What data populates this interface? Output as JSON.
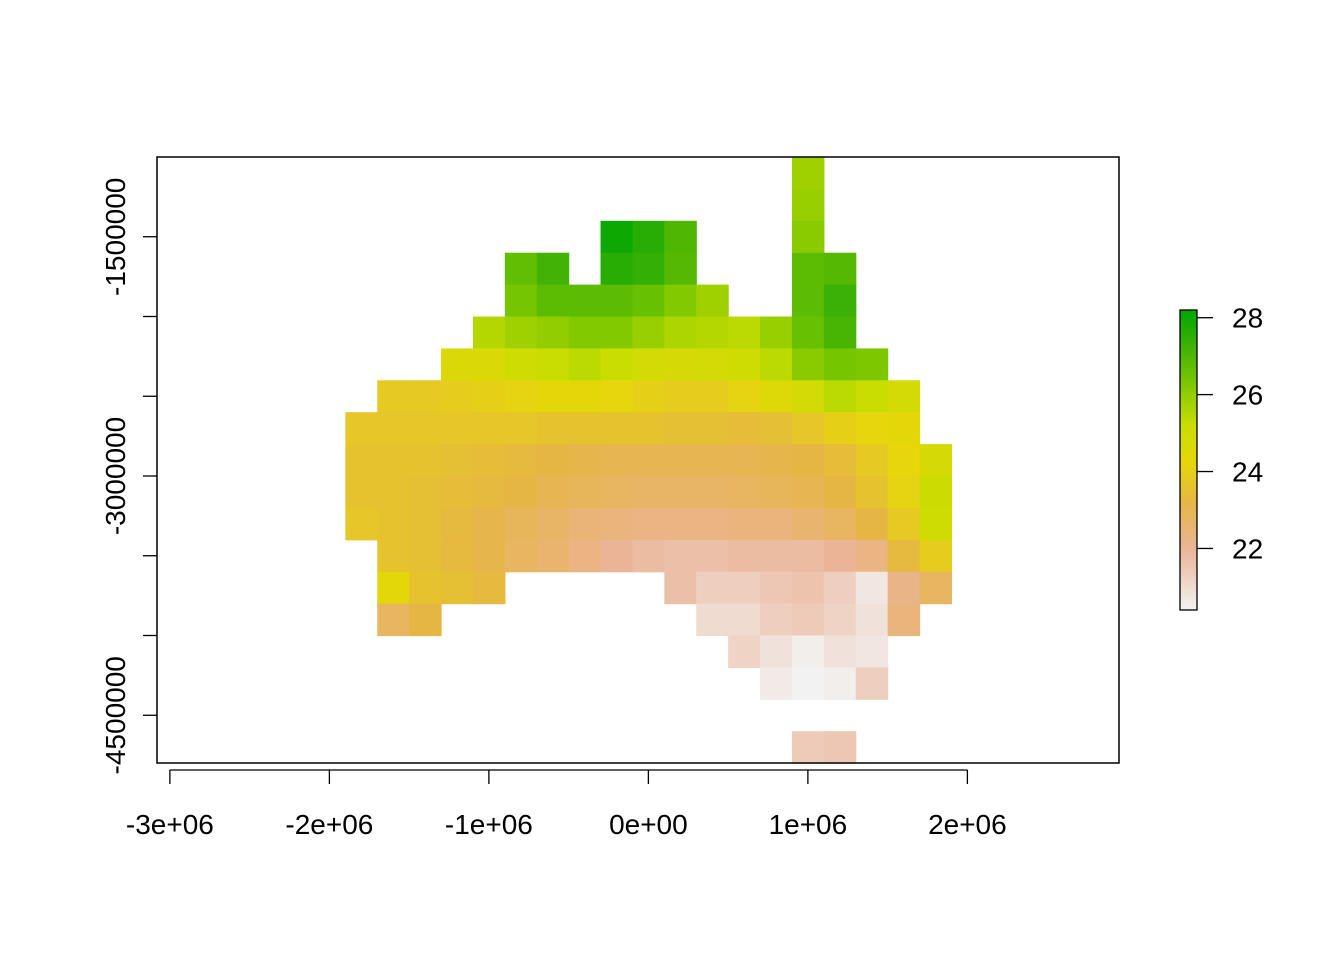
{
  "chart_data": {
    "type": "heatmap",
    "title": "",
    "xlabel": "",
    "ylabel": "",
    "xlim": [
      -3000000,
      3000000
    ],
    "ylim": [
      -4800000,
      -1000000
    ],
    "cell_size": 200000,
    "x_ticks": [
      {
        "value": -3000000,
        "label": "-3e+06"
      },
      {
        "value": -2000000,
        "label": "-2e+06"
      },
      {
        "value": -1000000,
        "label": "-1e+06"
      },
      {
        "value": 0,
        "label": "0e+00"
      },
      {
        "value": 1000000,
        "label": "1e+06"
      },
      {
        "value": 2000000,
        "label": "2e+06"
      }
    ],
    "y_ticks": [
      {
        "value": -1500000,
        "label": "-1500000"
      },
      {
        "value": -2000000,
        "label": ""
      },
      {
        "value": -2500000,
        "label": ""
      },
      {
        "value": -3000000,
        "label": "-3000000"
      },
      {
        "value": -3500000,
        "label": ""
      },
      {
        "value": -4000000,
        "label": ""
      },
      {
        "value": -4500000,
        "label": "-4500000"
      }
    ],
    "legend": {
      "position": "right",
      "min": 20.4,
      "max": 28.2,
      "ticks": [
        {
          "value": 22,
          "label": "22"
        },
        {
          "value": 24,
          "label": "24"
        },
        {
          "value": 26,
          "label": "26"
        },
        {
          "value": 28,
          "label": "28"
        }
      ],
      "color_stops": [
        {
          "value": 20.4,
          "color": "#f2f2f2"
        },
        {
          "value": 22.0,
          "color": "#ebb497"
        },
        {
          "value": 23.2,
          "color": "#e6b645"
        },
        {
          "value": 24.2,
          "color": "#e6d60b"
        },
        {
          "value": 25.2,
          "color": "#c9dd02"
        },
        {
          "value": 26.3,
          "color": "#7cc700"
        },
        {
          "value": 27.3,
          "color": "#3bb006"
        },
        {
          "value": 28.2,
          "color": "#00a600"
        }
      ]
    },
    "grid": false,
    "columns_x_centers": [
      -1800000,
      -1600000,
      -1400000,
      -1200000,
      -1000000,
      -800000,
      -600000,
      -400000,
      -200000,
      0,
      200000,
      400000,
      600000,
      800000,
      1000000,
      1200000,
      1400000,
      1600000,
      1800000
    ],
    "rows_y_centers": [
      -1100000,
      -1300000,
      -1500000,
      -1700000,
      -1900000,
      -2100000,
      -2300000,
      -2500000,
      -2700000,
      -2900000,
      -3100000,
      -3300000,
      -3500000,
      -3700000,
      -3900000,
      -4100000,
      -4300000,
      -4500000,
      -4700000
    ],
    "values": [
      [
        null,
        null,
        null,
        null,
        null,
        null,
        null,
        null,
        null,
        null,
        null,
        null,
        null,
        null,
        25.8,
        null,
        null,
        null,
        null
      ],
      [
        null,
        null,
        null,
        null,
        null,
        null,
        null,
        null,
        null,
        null,
        null,
        null,
        null,
        null,
        25.9,
        null,
        null,
        null,
        null
      ],
      [
        null,
        null,
        null,
        null,
        null,
        null,
        null,
        null,
        28.0,
        27.6,
        27.0,
        null,
        null,
        null,
        26.1,
        null,
        null,
        null,
        null
      ],
      [
        null,
        null,
        null,
        null,
        null,
        26.7,
        27.2,
        null,
        27.6,
        27.4,
        26.9,
        null,
        null,
        null,
        26.8,
        26.9,
        null,
        null,
        null
      ],
      [
        null,
        null,
        null,
        null,
        null,
        26.4,
        26.8,
        26.8,
        26.8,
        26.6,
        26.2,
        25.8,
        null,
        null,
        26.8,
        27.3,
        null,
        null,
        null
      ],
      [
        null,
        null,
        null,
        null,
        25.5,
        25.8,
        26.0,
        26.2,
        26.2,
        25.9,
        25.6,
        25.5,
        25.4,
        25.9,
        26.6,
        27.1,
        null,
        null,
        null
      ],
      [
        null,
        null,
        null,
        24.6,
        24.6,
        25.0,
        25.2,
        25.4,
        25.2,
        24.9,
        24.8,
        24.9,
        25.0,
        25.4,
        26.1,
        26.4,
        26.3,
        null,
        null
      ],
      [
        null,
        23.8,
        23.8,
        23.9,
        24.0,
        24.1,
        24.3,
        24.3,
        24.2,
        24.0,
        23.9,
        23.9,
        24.1,
        24.5,
        24.9,
        25.4,
        25.2,
        24.9,
        null
      ],
      [
        23.7,
        23.7,
        23.7,
        23.7,
        23.7,
        23.7,
        23.6,
        23.6,
        23.6,
        23.6,
        23.5,
        23.5,
        23.4,
        23.5,
        23.7,
        24.0,
        24.2,
        24.3,
        null
      ],
      [
        23.6,
        23.6,
        23.6,
        23.5,
        23.4,
        23.3,
        23.2,
        23.1,
        23.0,
        23.0,
        23.0,
        23.0,
        23.0,
        23.1,
        23.2,
        23.4,
        23.8,
        24.2,
        24.8
      ],
      [
        23.6,
        23.6,
        23.5,
        23.4,
        23.3,
        23.2,
        23.0,
        22.9,
        22.8,
        22.7,
        22.7,
        22.7,
        22.8,
        22.9,
        23.0,
        23.2,
        23.6,
        24.1,
        25.1
      ],
      [
        23.7,
        23.6,
        23.5,
        23.3,
        23.1,
        22.9,
        22.7,
        22.5,
        22.4,
        22.3,
        22.3,
        22.3,
        22.4,
        22.4,
        22.6,
        22.8,
        23.2,
        23.8,
        25.0
      ],
      [
        null,
        23.6,
        23.5,
        23.3,
        23.1,
        22.8,
        22.6,
        22.3,
        22.0,
        21.8,
        21.7,
        21.7,
        21.8,
        21.8,
        21.8,
        22.0,
        22.3,
        23.3,
        23.9
      ],
      [
        null,
        24.3,
        23.6,
        23.5,
        23.3,
        null,
        null,
        null,
        null,
        null,
        21.7,
        21.3,
        21.3,
        21.5,
        21.6,
        21.3,
        20.7,
        22.2,
        22.8
      ],
      [
        null,
        22.8,
        23.2,
        null,
        null,
        null,
        null,
        null,
        null,
        null,
        null,
        21.0,
        21.0,
        21.3,
        21.4,
        21.2,
        20.8,
        22.4,
        null
      ],
      [
        null,
        null,
        null,
        null,
        null,
        null,
        null,
        null,
        null,
        null,
        null,
        null,
        21.2,
        20.8,
        20.5,
        20.8,
        20.7,
        null,
        null
      ],
      [
        null,
        null,
        null,
        null,
        null,
        null,
        null,
        null,
        null,
        null,
        null,
        null,
        null,
        20.6,
        20.4,
        20.5,
        21.3,
        null,
        null
      ],
      [
        null,
        null,
        null,
        null,
        null,
        null,
        null,
        null,
        null,
        null,
        null,
        null,
        null,
        null,
        null,
        null,
        null,
        null,
        null
      ],
      [
        null,
        null,
        null,
        null,
        null,
        null,
        null,
        null,
        null,
        null,
        null,
        null,
        null,
        null,
        21.4,
        21.5,
        null,
        null,
        null
      ]
    ]
  }
}
